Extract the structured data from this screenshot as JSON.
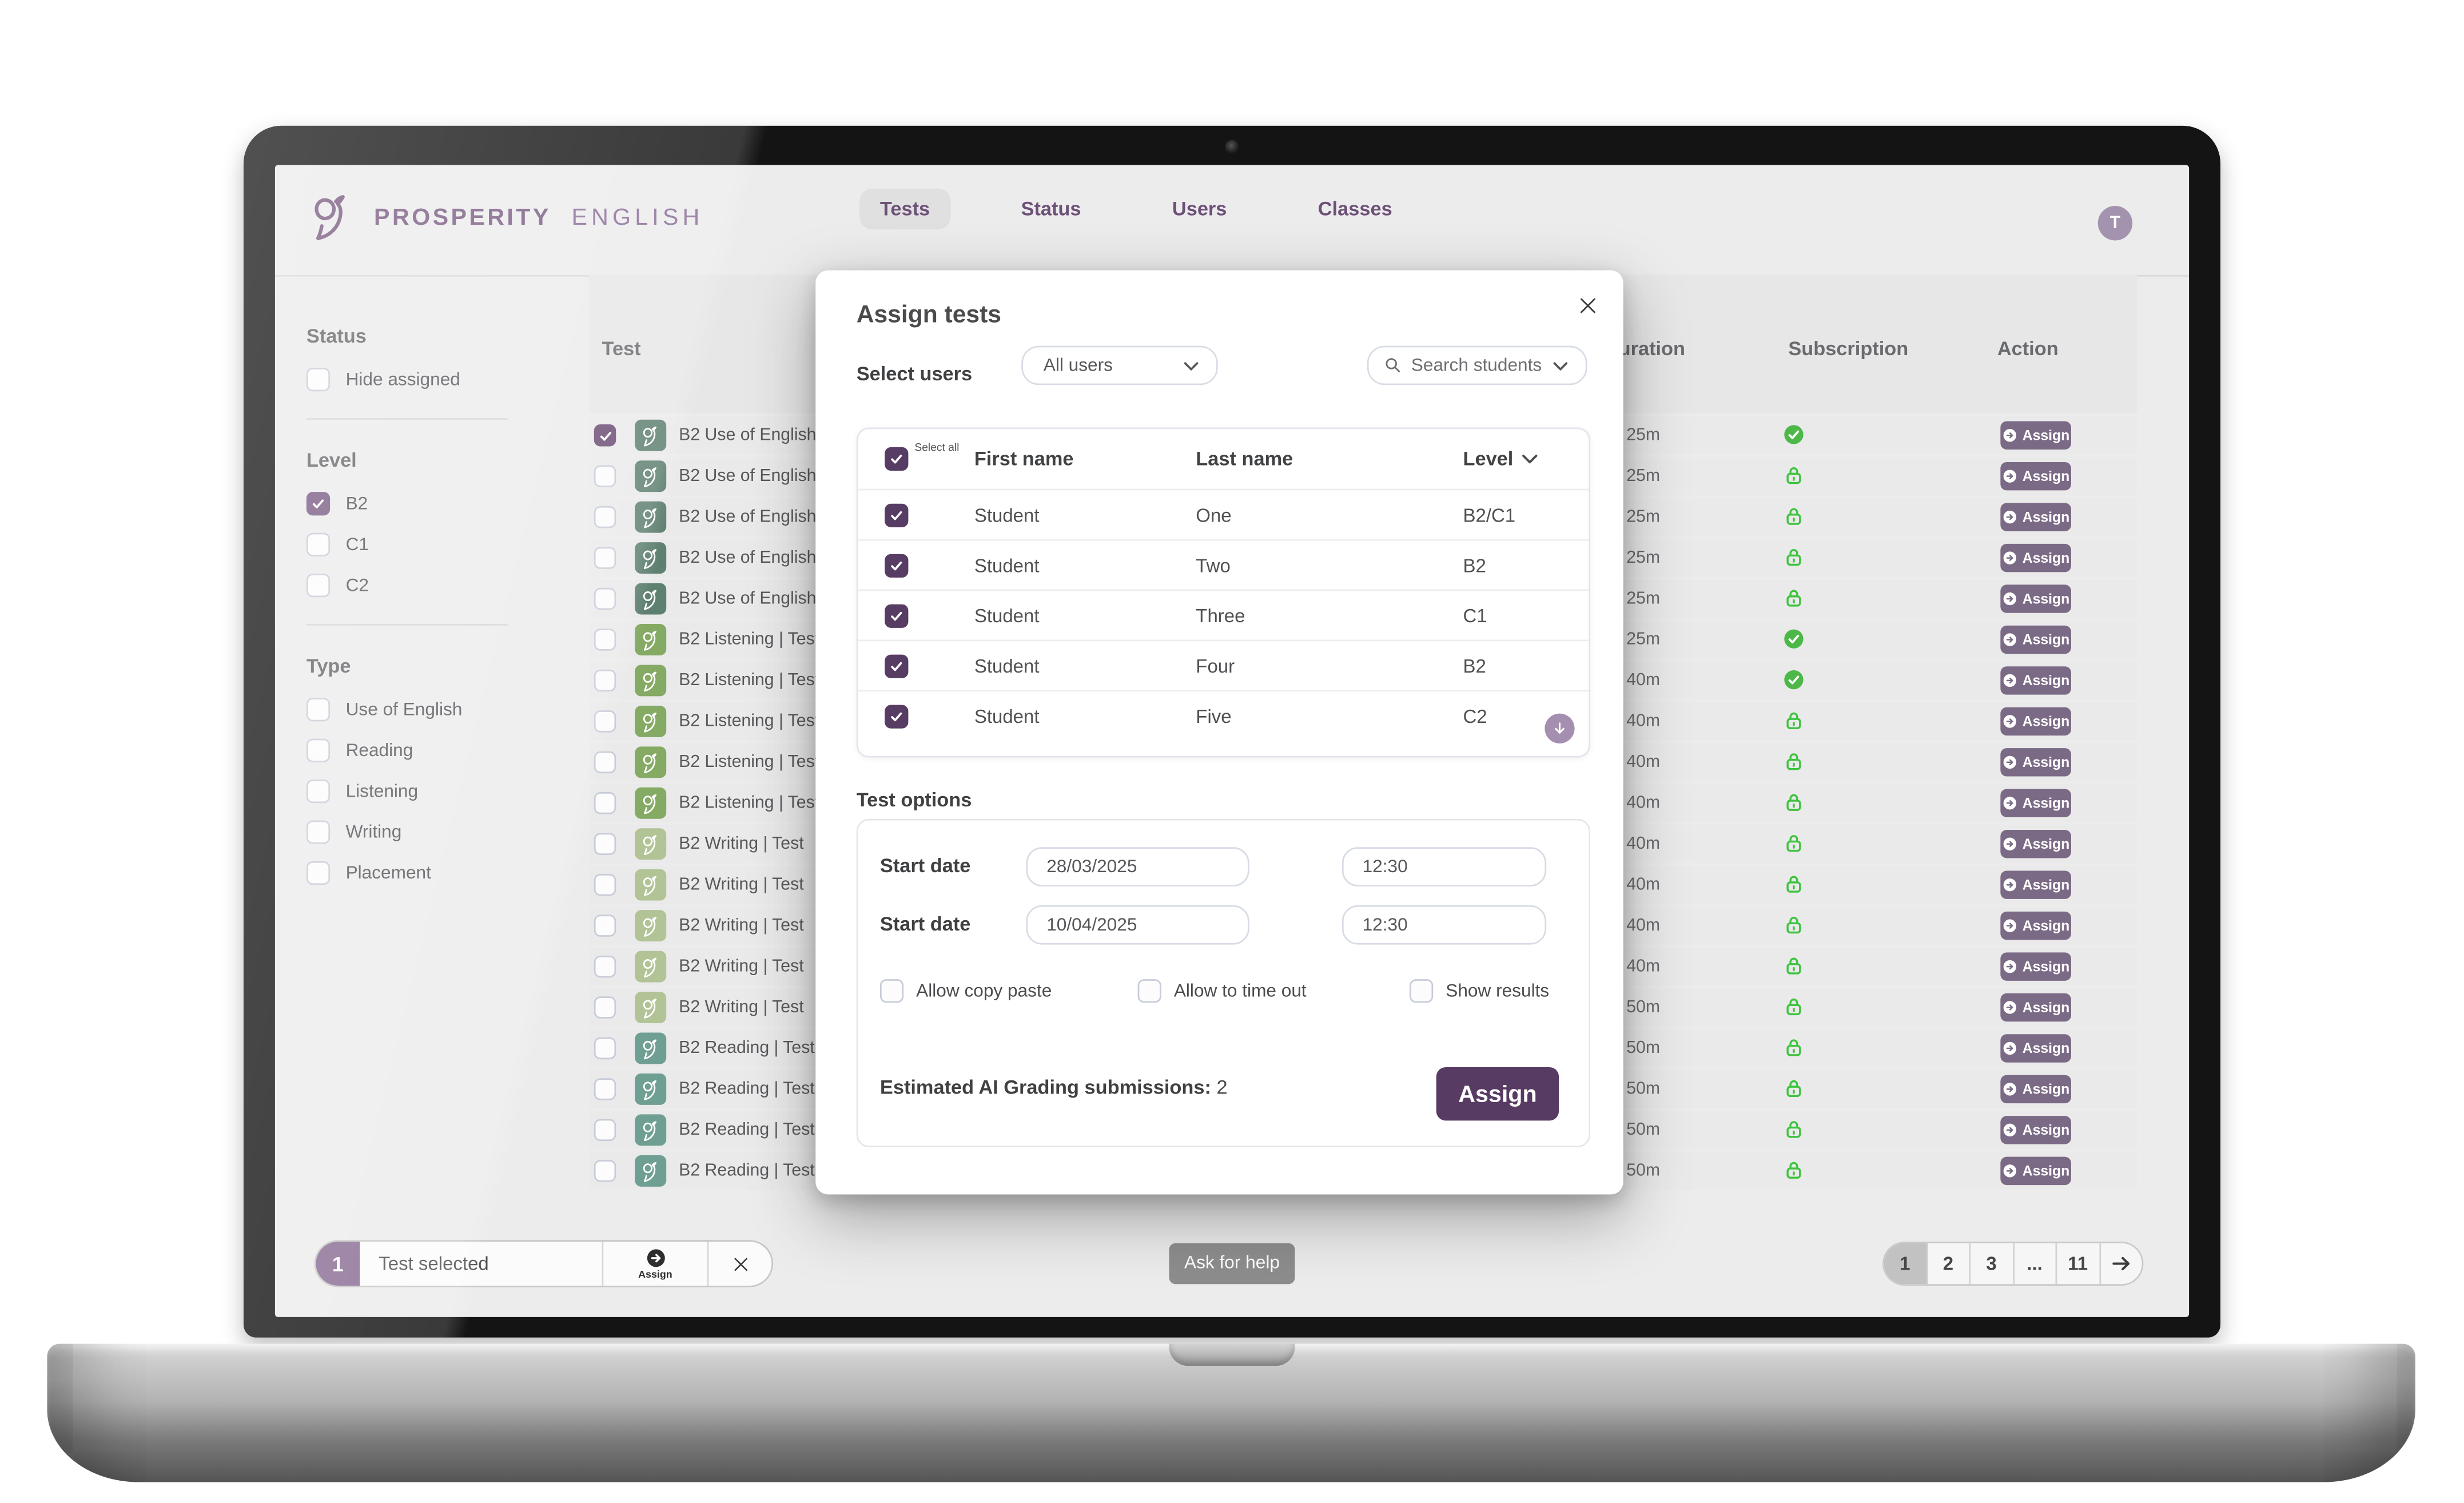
{
  "brand": {
    "word1": "PROSPERITY",
    "word2": "ENGLISH"
  },
  "header": {
    "tabs": [
      {
        "label": "Tests",
        "active": true
      },
      {
        "label": "Status",
        "active": false
      },
      {
        "label": "Users",
        "active": false
      },
      {
        "label": "Classes",
        "active": false
      }
    ],
    "avatar_initial": "T"
  },
  "sidebar": {
    "sections": [
      {
        "title": "Status",
        "options": [
          {
            "label": "Hide assigned",
            "checked": false
          }
        ]
      },
      {
        "title": "Level",
        "options": [
          {
            "label": "B2",
            "checked": true
          },
          {
            "label": "C1",
            "checked": false
          },
          {
            "label": "C2",
            "checked": false
          }
        ]
      },
      {
        "title": "Type",
        "options": [
          {
            "label": "Use of English",
            "checked": false
          },
          {
            "label": "Reading",
            "checked": false
          },
          {
            "label": "Listening",
            "checked": false
          },
          {
            "label": "Writing",
            "checked": false
          },
          {
            "label": "Placement",
            "checked": false
          }
        ]
      }
    ]
  },
  "table": {
    "headers": {
      "test": "Test",
      "duration": "Duration",
      "subscription": "Subscription",
      "action": "Action"
    },
    "assign_label": "Assign",
    "rows": [
      {
        "name": "B2 Use of English | Test",
        "type": "use_of_english",
        "duration": "25m",
        "subscription": "included",
        "checked": true
      },
      {
        "name": "B2 Use of English | Test",
        "type": "use_of_english",
        "duration": "25m",
        "subscription": "locked",
        "checked": false
      },
      {
        "name": "B2 Use of English | Test",
        "type": "use_of_english",
        "duration": "25m",
        "subscription": "locked",
        "checked": false
      },
      {
        "name": "B2 Use of English | Test",
        "type": "use_of_english",
        "duration": "25m",
        "subscription": "locked",
        "checked": false
      },
      {
        "name": "B2 Use of English | Test",
        "type": "use_of_english",
        "duration": "25m",
        "subscription": "locked",
        "checked": false
      },
      {
        "name": "B2 Listening | Test",
        "type": "listening",
        "duration": "25m",
        "subscription": "included",
        "checked": false
      },
      {
        "name": "B2 Listening | Test",
        "type": "listening",
        "duration": "40m",
        "subscription": "included",
        "checked": false
      },
      {
        "name": "B2 Listening | Test",
        "type": "listening",
        "duration": "40m",
        "subscription": "locked",
        "checked": false
      },
      {
        "name": "B2 Listening | Test",
        "type": "listening",
        "duration": "40m",
        "subscription": "locked",
        "checked": false
      },
      {
        "name": "B2 Listening | Test",
        "type": "listening",
        "duration": "40m",
        "subscription": "locked",
        "checked": false
      },
      {
        "name": "B2 Writing | Test",
        "type": "writing",
        "duration": "40m",
        "subscription": "locked",
        "checked": false
      },
      {
        "name": "B2 Writing | Test",
        "type": "writing",
        "duration": "40m",
        "subscription": "locked",
        "checked": false
      },
      {
        "name": "B2 Writing | Test",
        "type": "writing",
        "duration": "40m",
        "subscription": "locked",
        "checked": false
      },
      {
        "name": "B2 Writing | Test",
        "type": "writing",
        "duration": "40m",
        "subscription": "locked",
        "checked": false
      },
      {
        "name": "B2 Writing | Test",
        "type": "writing",
        "duration": "50m",
        "subscription": "locked",
        "checked": false
      },
      {
        "name": "B2 Reading | Test",
        "type": "reading",
        "duration": "50m",
        "subscription": "locked",
        "checked": false
      },
      {
        "name": "B2 Reading | Test",
        "type": "reading",
        "duration": "50m",
        "subscription": "locked",
        "checked": false
      },
      {
        "name": "B2 Reading | Test",
        "type": "reading",
        "duration": "50m",
        "subscription": "locked",
        "checked": false
      },
      {
        "name": "B2 Reading | Test",
        "type": "reading",
        "duration": "50m",
        "subscription": "locked",
        "checked": false
      }
    ]
  },
  "modal": {
    "title": "Assign tests",
    "select_users_label": "Select users",
    "users_dropdown": "All users",
    "search_placeholder": "Search students",
    "students": {
      "select_all_label": "Select all",
      "columns": {
        "first": "First name",
        "last": "Last name",
        "level": "Level"
      },
      "rows": [
        {
          "first": "Student",
          "last": "One",
          "level": "B2/C1",
          "checked": true
        },
        {
          "first": "Student",
          "last": "Two",
          "level": "B2",
          "checked": true
        },
        {
          "first": "Student",
          "last": "Three",
          "level": "C1",
          "checked": true
        },
        {
          "first": "Student",
          "last": "Four",
          "level": "B2",
          "checked": true
        },
        {
          "first": "Student",
          "last": "Five",
          "level": "C2",
          "checked": true
        }
      ]
    },
    "options": {
      "title": "Test options",
      "date_rows": [
        {
          "label": "Start date",
          "date": "28/03/2025",
          "time": "12:30"
        },
        {
          "label": "Start date",
          "date": "10/04/2025",
          "time": "12:30"
        }
      ],
      "checkboxes": [
        {
          "label": "Allow copy paste",
          "checked": false
        },
        {
          "label": "Allow to time out",
          "checked": false
        },
        {
          "label": "Show results",
          "checked": false
        }
      ]
    },
    "estimate_label": "Estimated AI Grading submissions:",
    "estimate_value": "2",
    "assign_button": "Assign"
  },
  "bottom_bar": {
    "selected_count": "1",
    "selected_label": "Test selected",
    "assign_label": "Assign",
    "help_button": "Ask for help",
    "pagination": {
      "pages": [
        "1",
        "2",
        "3",
        "...",
        "11"
      ],
      "active": "1",
      "next": "arrow-right"
    }
  },
  "colors": {
    "brand_purple": "#7A5C83",
    "accent_purple_dark": "#573D63",
    "row_checkbox_purple": "#6A4C74",
    "sidebar_checkbox_purple": "#7A5B84",
    "assign_row_button": "#7B6A85",
    "modal_assign_button": "#583B63",
    "selected_count_purple": "#8A6E94",
    "subscription_green": "#3EC43E",
    "test_icon_colors": {
      "use_of_english": "#5E8070",
      "listening": "#85AA64",
      "writing": "#B2C496",
      "reading": "#6F9F92"
    }
  }
}
